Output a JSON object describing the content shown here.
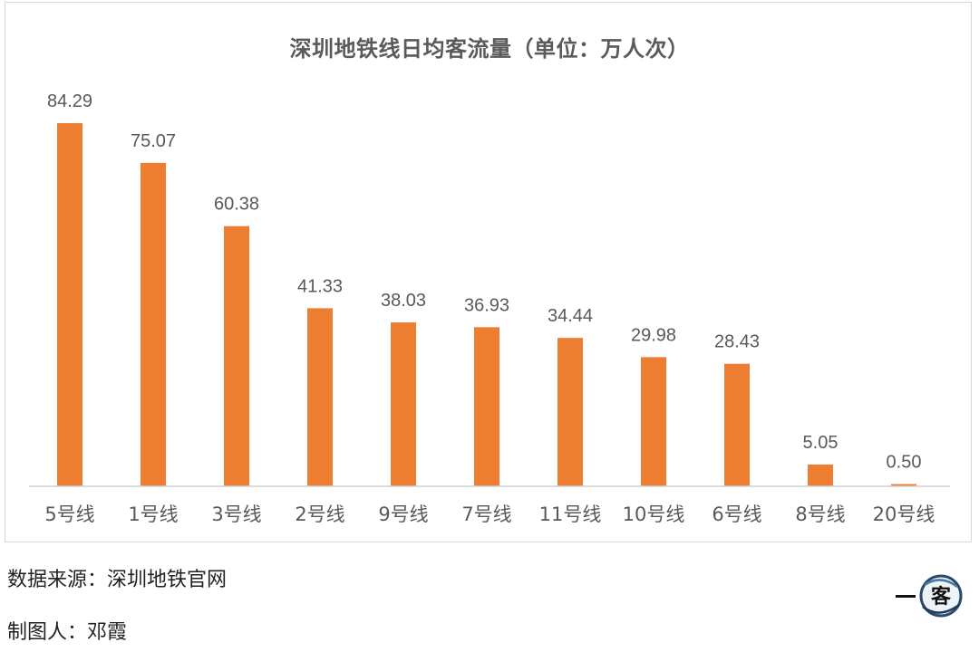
{
  "chart_data": {
    "type": "bar",
    "title": "深圳地铁线日均客流量（单位：万人次）",
    "categories": [
      "5号线",
      "1号线",
      "3号线",
      "2号线",
      "9号线",
      "7号线",
      "11号线",
      "10号线",
      "6号线",
      "8号线",
      "20号线"
    ],
    "values": [
      84.29,
      75.07,
      60.38,
      41.33,
      38.03,
      36.93,
      34.44,
      29.98,
      28.43,
      5.05,
      0.5
    ],
    "value_labels": [
      "84.29",
      "75.07",
      "60.38",
      "41.33",
      "38.03",
      "36.93",
      "34.44",
      "29.98",
      "28.43",
      "5.05",
      "0.50"
    ],
    "ylim": [
      0,
      90
    ],
    "xlabel": "",
    "ylabel": "",
    "grid": false,
    "bar_color": "#ED7D31"
  },
  "footer": {
    "source": "数据来源：深圳地铁官网",
    "author": "制图人：邓霞"
  },
  "logo": {
    "text": "一客",
    "icon": "ink-circle-logo"
  }
}
